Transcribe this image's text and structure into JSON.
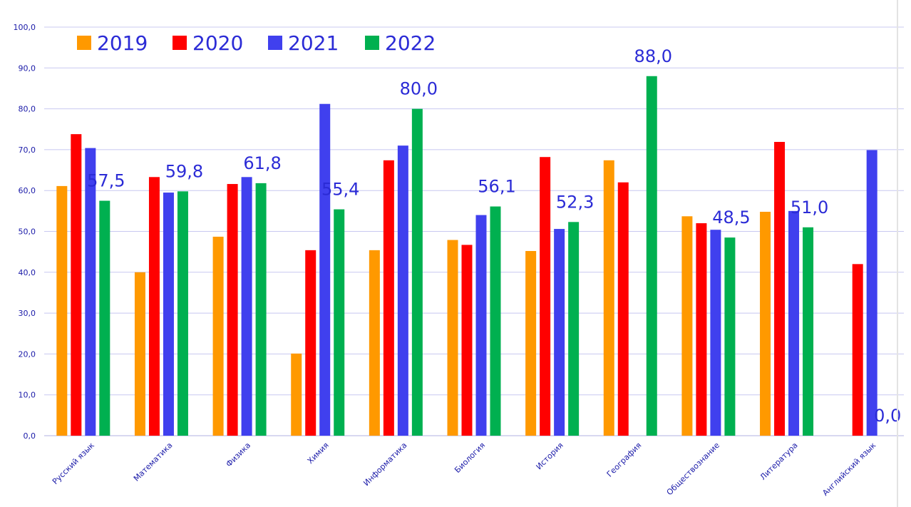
{
  "chart_data": {
    "type": "bar",
    "categories": [
      "Русский язык",
      "Математика",
      "Физика",
      "Химия",
      "Информатика",
      "Биология",
      "История",
      "География",
      "Обществознание",
      "Литература",
      "Английский язык"
    ],
    "series": [
      {
        "name": "2019",
        "color": "#ff9900",
        "values": [
          61.1,
          40.0,
          48.7,
          20.1,
          45.4,
          47.9,
          45.2,
          67.4,
          53.7,
          54.8,
          null
        ]
      },
      {
        "name": "2020",
        "color": "#ff0000",
        "values": [
          73.8,
          63.3,
          61.6,
          45.4,
          67.4,
          46.7,
          68.2,
          62.0,
          52.0,
          71.9,
          42.0
        ]
      },
      {
        "name": "2021",
        "color": "#4040ee",
        "values": [
          70.4,
          59.5,
          63.3,
          81.2,
          71.0,
          54.0,
          50.6,
          null,
          50.4,
          55.0,
          69.9
        ]
      },
      {
        "name": "2022",
        "color": "#00b050",
        "values": [
          57.5,
          59.8,
          61.8,
          55.4,
          80.0,
          56.1,
          52.3,
          88.0,
          48.5,
          51.0,
          0.0
        ]
      }
    ],
    "data_labels": {
      "series": "2022",
      "text": [
        "57,5",
        "59,8",
        "61,8",
        "55,4",
        "80,0",
        "56,1",
        "52,3",
        "88,0",
        "48,5",
        "51,0",
        "0,0"
      ]
    },
    "y_tick_labels": [
      "0,0",
      "10,0",
      "20,0",
      "30,0",
      "40,0",
      "50,0",
      "60,0",
      "70,0",
      "80,0",
      "90,0",
      "100,0"
    ],
    "ylim": [
      0,
      100
    ],
    "title": "",
    "xlabel": "",
    "ylabel": "",
    "grid": true,
    "legend_position": "top-left"
  }
}
